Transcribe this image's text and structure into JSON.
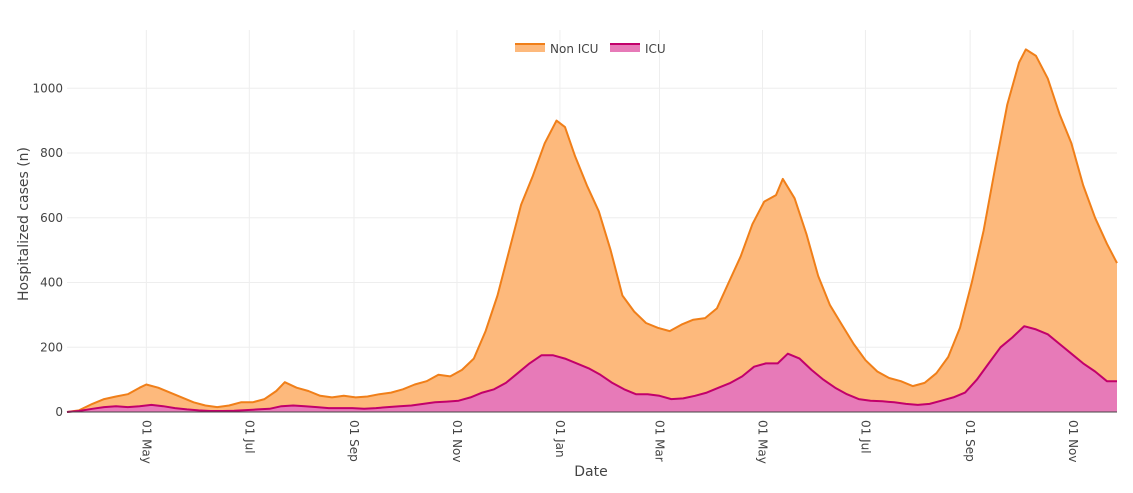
{
  "chart_data": {
    "type": "area",
    "title": "",
    "xlabel": "Date",
    "ylabel": "Hospitalized cases (n)",
    "ylim": [
      0,
      1180
    ],
    "y_ticks": [
      0,
      200,
      400,
      600,
      800,
      1000
    ],
    "x_start": "2020-03-15",
    "x_end": "2021-11-27",
    "x_ticks": [
      {
        "date": "2020-05-01",
        "label": "01 May"
      },
      {
        "date": "2020-07-01",
        "label": "01 Jul"
      },
      {
        "date": "2020-09-01",
        "label": "01 Sep"
      },
      {
        "date": "2020-11-01",
        "label": "01 Nov"
      },
      {
        "date": "2021-01-01",
        "label": "01 Jan"
      },
      {
        "date": "2021-03-01",
        "label": "01 Mar"
      },
      {
        "date": "2021-05-01",
        "label": "01 May"
      },
      {
        "date": "2021-07-01",
        "label": "01 Jul"
      },
      {
        "date": "2021-09-01",
        "label": "01 Sep"
      },
      {
        "date": "2021-11-01",
        "label": "01 Nov"
      }
    ],
    "legend_position": "top-center",
    "series": [
      {
        "name": "Non ICU",
        "color": "#f07f19",
        "fill": "#fdb97c",
        "points": [
          [
            "2020-03-15",
            0
          ],
          [
            "2020-03-22",
            5
          ],
          [
            "2020-03-30",
            25
          ],
          [
            "2020-04-06",
            40
          ],
          [
            "2020-04-13",
            48
          ],
          [
            "2020-04-20",
            55
          ],
          [
            "2020-04-27",
            75
          ],
          [
            "2020-05-01",
            85
          ],
          [
            "2020-05-08",
            75
          ],
          [
            "2020-05-15",
            60
          ],
          [
            "2020-05-22",
            45
          ],
          [
            "2020-05-29",
            30
          ],
          [
            "2020-06-05",
            20
          ],
          [
            "2020-06-12",
            15
          ],
          [
            "2020-06-19",
            20
          ],
          [
            "2020-06-26",
            30
          ],
          [
            "2020-07-03",
            30
          ],
          [
            "2020-07-10",
            40
          ],
          [
            "2020-07-17",
            65
          ],
          [
            "2020-07-22",
            92
          ],
          [
            "2020-07-29",
            75
          ],
          [
            "2020-08-05",
            65
          ],
          [
            "2020-08-12",
            50
          ],
          [
            "2020-08-19",
            45
          ],
          [
            "2020-08-26",
            50
          ],
          [
            "2020-09-02",
            45
          ],
          [
            "2020-09-09",
            48
          ],
          [
            "2020-09-16",
            55
          ],
          [
            "2020-09-23",
            60
          ],
          [
            "2020-09-30",
            70
          ],
          [
            "2020-10-07",
            85
          ],
          [
            "2020-10-14",
            95
          ],
          [
            "2020-10-21",
            115
          ],
          [
            "2020-10-28",
            110
          ],
          [
            "2020-11-04",
            130
          ],
          [
            "2020-11-11",
            165
          ],
          [
            "2020-11-18",
            250
          ],
          [
            "2020-11-25",
            360
          ],
          [
            "2020-12-02",
            500
          ],
          [
            "2020-12-09",
            640
          ],
          [
            "2020-12-16",
            730
          ],
          [
            "2020-12-23",
            830
          ],
          [
            "2020-12-30",
            900
          ],
          [
            "2021-01-04",
            880
          ],
          [
            "2021-01-10",
            790
          ],
          [
            "2021-01-17",
            700
          ],
          [
            "2021-01-24",
            620
          ],
          [
            "2021-01-31",
            500
          ],
          [
            "2021-02-07",
            360
          ],
          [
            "2021-02-14",
            310
          ],
          [
            "2021-02-21",
            275
          ],
          [
            "2021-02-28",
            260
          ],
          [
            "2021-03-07",
            250
          ],
          [
            "2021-03-14",
            270
          ],
          [
            "2021-03-21",
            285
          ],
          [
            "2021-03-28",
            290
          ],
          [
            "2021-04-04",
            320
          ],
          [
            "2021-04-11",
            400
          ],
          [
            "2021-04-18",
            480
          ],
          [
            "2021-04-25",
            580
          ],
          [
            "2021-05-02",
            650
          ],
          [
            "2021-05-09",
            670
          ],
          [
            "2021-05-13",
            720
          ],
          [
            "2021-05-20",
            660
          ],
          [
            "2021-05-27",
            550
          ],
          [
            "2021-06-03",
            420
          ],
          [
            "2021-06-10",
            330
          ],
          [
            "2021-06-17",
            270
          ],
          [
            "2021-06-24",
            210
          ],
          [
            "2021-07-01",
            160
          ],
          [
            "2021-07-08",
            125
          ],
          [
            "2021-07-15",
            105
          ],
          [
            "2021-07-22",
            95
          ],
          [
            "2021-07-29",
            80
          ],
          [
            "2021-08-05",
            90
          ],
          [
            "2021-08-12",
            120
          ],
          [
            "2021-08-19",
            170
          ],
          [
            "2021-08-26",
            260
          ],
          [
            "2021-09-02",
            400
          ],
          [
            "2021-09-09",
            560
          ],
          [
            "2021-09-16",
            760
          ],
          [
            "2021-09-23",
            950
          ],
          [
            "2021-09-30",
            1080
          ],
          [
            "2021-10-04",
            1120
          ],
          [
            "2021-10-10",
            1100
          ],
          [
            "2021-10-17",
            1030
          ],
          [
            "2021-10-24",
            920
          ],
          [
            "2021-10-31",
            830
          ],
          [
            "2021-11-07",
            700
          ],
          [
            "2021-11-14",
            600
          ],
          [
            "2021-11-21",
            520
          ],
          [
            "2021-11-27",
            460
          ]
        ]
      },
      {
        "name": "ICU",
        "color": "#c2006b",
        "fill": "#e77ab8",
        "points": [
          [
            "2020-03-15",
            0
          ],
          [
            "2020-03-22",
            3
          ],
          [
            "2020-03-30",
            10
          ],
          [
            "2020-04-06",
            15
          ],
          [
            "2020-04-13",
            18
          ],
          [
            "2020-04-20",
            15
          ],
          [
            "2020-04-27",
            18
          ],
          [
            "2020-05-04",
            22
          ],
          [
            "2020-05-11",
            18
          ],
          [
            "2020-05-18",
            12
          ],
          [
            "2020-05-25",
            8
          ],
          [
            "2020-06-01",
            5
          ],
          [
            "2020-06-08",
            3
          ],
          [
            "2020-06-15",
            3
          ],
          [
            "2020-06-22",
            4
          ],
          [
            "2020-06-29",
            6
          ],
          [
            "2020-07-06",
            8
          ],
          [
            "2020-07-13",
            10
          ],
          [
            "2020-07-20",
            18
          ],
          [
            "2020-07-27",
            20
          ],
          [
            "2020-08-03",
            18
          ],
          [
            "2020-08-10",
            15
          ],
          [
            "2020-08-17",
            12
          ],
          [
            "2020-08-24",
            12
          ],
          [
            "2020-08-31",
            12
          ],
          [
            "2020-09-07",
            10
          ],
          [
            "2020-09-14",
            12
          ],
          [
            "2020-09-21",
            15
          ],
          [
            "2020-09-28",
            18
          ],
          [
            "2020-10-05",
            20
          ],
          [
            "2020-10-12",
            25
          ],
          [
            "2020-10-19",
            30
          ],
          [
            "2020-10-26",
            32
          ],
          [
            "2020-11-02",
            35
          ],
          [
            "2020-11-09",
            45
          ],
          [
            "2020-11-16",
            60
          ],
          [
            "2020-11-23",
            70
          ],
          [
            "2020-11-30",
            90
          ],
          [
            "2020-12-07",
            120
          ],
          [
            "2020-12-14",
            150
          ],
          [
            "2020-12-21",
            175
          ],
          [
            "2020-12-28",
            175
          ],
          [
            "2021-01-04",
            165
          ],
          [
            "2021-01-11",
            150
          ],
          [
            "2021-01-18",
            135
          ],
          [
            "2021-01-25",
            115
          ],
          [
            "2021-02-01",
            90
          ],
          [
            "2021-02-08",
            70
          ],
          [
            "2021-02-15",
            55
          ],
          [
            "2021-02-22",
            55
          ],
          [
            "2021-03-01",
            50
          ],
          [
            "2021-03-08",
            40
          ],
          [
            "2021-03-15",
            42
          ],
          [
            "2021-03-22",
            50
          ],
          [
            "2021-03-29",
            60
          ],
          [
            "2021-04-05",
            75
          ],
          [
            "2021-04-12",
            90
          ],
          [
            "2021-04-19",
            110
          ],
          [
            "2021-04-26",
            140
          ],
          [
            "2021-05-03",
            150
          ],
          [
            "2021-05-10",
            150
          ],
          [
            "2021-05-16",
            180
          ],
          [
            "2021-05-23",
            165
          ],
          [
            "2021-05-30",
            130
          ],
          [
            "2021-06-06",
            100
          ],
          [
            "2021-06-13",
            75
          ],
          [
            "2021-06-20",
            55
          ],
          [
            "2021-06-27",
            40
          ],
          [
            "2021-07-04",
            35
          ],
          [
            "2021-07-11",
            33
          ],
          [
            "2021-07-18",
            30
          ],
          [
            "2021-07-25",
            25
          ],
          [
            "2021-08-01",
            22
          ],
          [
            "2021-08-08",
            25
          ],
          [
            "2021-08-15",
            35
          ],
          [
            "2021-08-22",
            45
          ],
          [
            "2021-08-29",
            60
          ],
          [
            "2021-09-05",
            100
          ],
          [
            "2021-09-12",
            150
          ],
          [
            "2021-09-19",
            200
          ],
          [
            "2021-09-26",
            230
          ],
          [
            "2021-10-03",
            265
          ],
          [
            "2021-10-10",
            255
          ],
          [
            "2021-10-17",
            240
          ],
          [
            "2021-10-24",
            210
          ],
          [
            "2021-10-31",
            180
          ],
          [
            "2021-11-07",
            150
          ],
          [
            "2021-11-14",
            125
          ],
          [
            "2021-11-21",
            95
          ],
          [
            "2021-11-27",
            95
          ]
        ]
      }
    ]
  }
}
